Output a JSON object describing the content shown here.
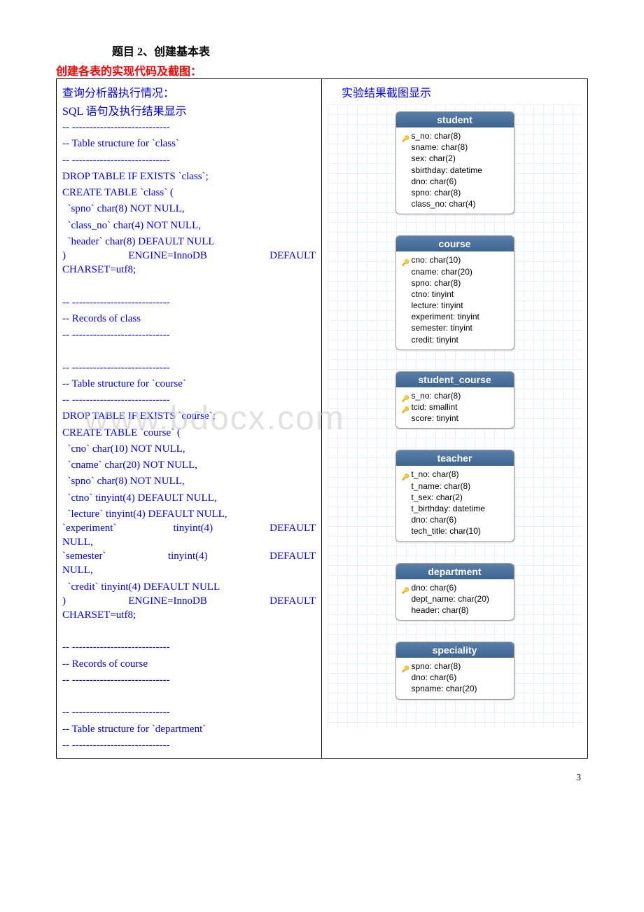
{
  "title_prefix": "题目 2、",
  "title_main": "创建基本表",
  "subtitle": "创建各表的实现代码及截图：",
  "left": {
    "heading1": "查询分析器执行情况：",
    "heading2": "SQL 语句及执行结果显示",
    "sql_lines": [
      "-- ----------------------------",
      "-- Table structure for `class`",
      "-- ----------------------------",
      "DROP TABLE IF EXISTS `class`;",
      "CREATE TABLE `class` (",
      "  `spno` char(8) NOT NULL,",
      "  `class_no` char(4) NOT NULL,",
      "  `header` char(8) DEFAULT NULL"
    ],
    "engine_line_a": ")",
    "engine_line_b": "ENGINE=InnoDB",
    "engine_line_c": "DEFAULT",
    "charset_line": "CHARSET=utf8;",
    "blank1": "",
    "rec_class": [
      "-- ----------------------------",
      "-- Records of class",
      "-- ----------------------------"
    ],
    "blank2": "",
    "course_struct": [
      "-- ----------------------------",
      "-- Table structure for `course`",
      "-- ----------------------------",
      "DROP TABLE IF EXISTS `course`;",
      "CREATE TABLE `course` (",
      "  `cno` char(10) NOT NULL,",
      "  `cname` char(20) NOT NULL,",
      "  `spno` char(8) NOT NULL,",
      "  `ctno` tinyint(4) DEFAULT NULL,",
      "  `lecture` tinyint(4) DEFAULT NULL,"
    ],
    "exp_a": "  `experiment`",
    "exp_b": "tinyint(4)",
    "exp_c": "DEFAULT",
    "null1": "NULL,",
    "sem_a": "  `semester`",
    "sem_b": "tinyint(4)",
    "sem_c": "DEFAULT",
    "null2": "NULL,",
    "credit_line": "  `credit` tinyint(4) DEFAULT NULL",
    "engine2_a": ")",
    "engine2_b": "ENGINE=InnoDB",
    "engine2_c": "DEFAULT",
    "charset2": "CHARSET=utf8;",
    "rec_course": [
      "-- ----------------------------",
      "-- Records of course",
      "-- ----------------------------"
    ],
    "dept_struct": [
      "-- ----------------------------",
      "-- Table structure for `department`",
      "-- ----------------------------"
    ]
  },
  "right": {
    "heading": "实验结果截图显示",
    "entities": [
      {
        "name": "student",
        "fields": [
          {
            "k": true,
            "t": "s_no: char(8)"
          },
          {
            "k": false,
            "t": "sname: char(8)"
          },
          {
            "k": false,
            "t": "sex: char(2)"
          },
          {
            "k": false,
            "t": "sbirthday: datetime"
          },
          {
            "k": false,
            "t": "dno: char(6)"
          },
          {
            "k": false,
            "t": "spno: char(8)"
          },
          {
            "k": false,
            "t": "class_no: char(4)"
          }
        ]
      },
      {
        "name": "course",
        "fields": [
          {
            "k": true,
            "t": "cno: char(10)"
          },
          {
            "k": false,
            "t": "cname: char(20)"
          },
          {
            "k": false,
            "t": "spno: char(8)"
          },
          {
            "k": false,
            "t": "ctno: tinyint"
          },
          {
            "k": false,
            "t": "lecture: tinyint"
          },
          {
            "k": false,
            "t": "experiment: tinyint"
          },
          {
            "k": false,
            "t": "semester: tinyint"
          },
          {
            "k": false,
            "t": "credit: tinyint"
          }
        ]
      },
      {
        "name": "student_course",
        "fields": [
          {
            "k": true,
            "t": "s_no: char(8)"
          },
          {
            "k": true,
            "t": "tcid: smallint"
          },
          {
            "k": false,
            "t": "score: tinyint"
          }
        ]
      },
      {
        "name": "teacher",
        "fields": [
          {
            "k": true,
            "t": "t_no: char(8)"
          },
          {
            "k": false,
            "t": "t_name: char(8)"
          },
          {
            "k": false,
            "t": "t_sex: char(2)"
          },
          {
            "k": false,
            "t": "t_birthday: datetime"
          },
          {
            "k": false,
            "t": "dno: char(6)"
          },
          {
            "k": false,
            "t": "tech_title: char(10)"
          }
        ]
      },
      {
        "name": "department",
        "fields": [
          {
            "k": true,
            "t": "dno: char(6)"
          },
          {
            "k": false,
            "t": "dept_name: char(20)"
          },
          {
            "k": false,
            "t": "header: char(8)"
          }
        ]
      },
      {
        "name": "speciality",
        "fields": [
          {
            "k": true,
            "t": "spno: char(8)"
          },
          {
            "k": false,
            "t": "dno: char(6)"
          },
          {
            "k": false,
            "t": "spname: char(20)"
          }
        ]
      }
    ]
  },
  "watermark": "www.bdocx.com",
  "page_number": "3"
}
